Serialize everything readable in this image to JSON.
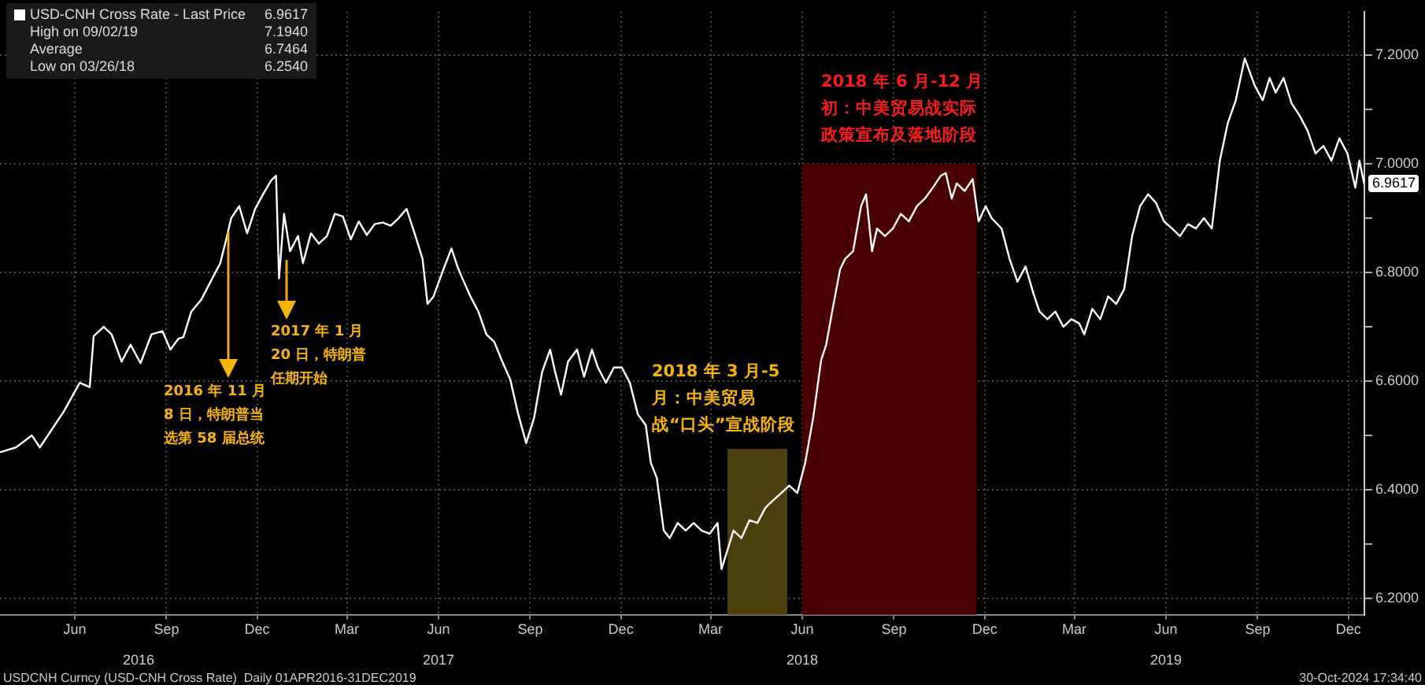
{
  "chart_data": {
    "type": "line",
    "x": [
      "2016-04-01",
      "2016-04-17",
      "2016-05-03",
      "2016-05-11",
      "2016-06-04",
      "2016-06-20",
      "2016-06-30",
      "2016-07-04",
      "2016-07-14",
      "2016-07-22",
      "2016-08-01",
      "2016-08-10",
      "2016-08-20",
      "2016-08-31",
      "2016-09-11",
      "2016-09-19",
      "2016-09-27",
      "2016-10-02",
      "2016-10-10",
      "2016-10-20",
      "2016-10-31",
      "2016-11-08",
      "2016-11-14",
      "2016-11-19",
      "2016-11-27",
      "2016-12-05",
      "2016-12-13",
      "2016-12-21",
      "2016-12-29",
      "2017-01-03",
      "2017-01-06",
      "2017-01-11",
      "2017-01-17",
      "2017-01-25",
      "2017-01-30",
      "2017-02-07",
      "2017-02-15",
      "2017-02-23",
      "2017-03-03",
      "2017-03-11",
      "2017-03-19",
      "2017-03-27",
      "2017-04-04",
      "2017-04-12",
      "2017-04-20",
      "2017-04-28",
      "2017-05-06",
      "2017-05-14",
      "2017-05-22",
      "2017-05-30",
      "2017-06-04",
      "2017-06-10",
      "2017-06-20",
      "2017-06-28",
      "2017-07-04",
      "2017-07-09",
      "2017-07-17",
      "2017-07-25",
      "2017-08-02",
      "2017-08-10",
      "2017-08-18",
      "2017-08-26",
      "2017-09-03",
      "2017-09-11",
      "2017-09-19",
      "2017-09-27",
      "2017-10-05",
      "2017-10-10",
      "2017-10-16",
      "2017-10-23",
      "2017-11-01",
      "2017-11-08",
      "2017-11-16",
      "2017-11-22",
      "2017-11-30",
      "2017-12-08",
      "2017-12-16",
      "2017-12-24",
      "2018-01-01",
      "2018-01-09",
      "2018-01-14",
      "2018-01-20",
      "2018-01-27",
      "2018-02-02",
      "2018-02-10",
      "2018-02-18",
      "2018-02-26",
      "2018-03-06",
      "2018-03-14",
      "2018-03-22",
      "2018-03-26",
      "2018-04-07",
      "2018-04-15",
      "2018-04-23",
      "2018-05-01",
      "2018-05-09",
      "2018-05-17",
      "2018-05-25",
      "2018-06-02",
      "2018-06-10",
      "2018-06-18",
      "2018-06-26",
      "2018-07-04",
      "2018-07-09",
      "2018-07-15",
      "2018-07-23",
      "2018-07-28",
      "2018-08-05",
      "2018-08-13",
      "2018-08-18",
      "2018-08-24",
      "2018-08-29",
      "2018-09-06",
      "2018-09-14",
      "2018-09-22",
      "2018-09-30",
      "2018-10-08",
      "2018-10-16",
      "2018-10-24",
      "2018-11-01",
      "2018-11-06",
      "2018-11-12",
      "2018-11-17",
      "2018-11-25",
      "2018-12-03",
      "2018-12-09",
      "2018-12-16",
      "2018-12-22",
      "2019-01-01",
      "2019-01-09",
      "2019-01-17",
      "2019-01-25",
      "2019-02-02",
      "2019-02-08",
      "2019-02-16",
      "2019-02-24",
      "2019-03-04",
      "2019-03-12",
      "2019-03-20",
      "2019-03-25",
      "2019-04-02",
      "2019-04-10",
      "2019-04-18",
      "2019-04-26",
      "2019-05-04",
      "2019-05-12",
      "2019-05-20",
      "2019-05-28",
      "2019-06-05",
      "2019-06-13",
      "2019-06-21",
      "2019-06-29",
      "2019-07-07",
      "2019-07-15",
      "2019-07-23",
      "2019-07-31",
      "2019-08-08",
      "2019-08-16",
      "2019-08-24",
      "2019-09-02",
      "2019-09-12",
      "2019-09-20",
      "2019-09-27",
      "2019-10-03",
      "2019-10-11",
      "2019-10-19",
      "2019-10-27",
      "2019-11-04",
      "2019-11-12",
      "2019-11-20",
      "2019-11-28",
      "2019-12-06",
      "2019-12-14",
      "2019-12-22",
      "2019-12-26",
      "2019-12-31"
    ],
    "series": [
      {
        "name": "USD-CNH Cross Rate - Last Price",
        "color": "#ffffff",
        "values": [
          6.469,
          6.478,
          6.5,
          6.478,
          6.544,
          6.597,
          6.589,
          6.683,
          6.7,
          6.686,
          6.636,
          6.667,
          6.633,
          6.686,
          6.692,
          6.658,
          6.678,
          6.681,
          6.728,
          6.75,
          6.789,
          6.817,
          6.861,
          6.9,
          6.922,
          6.872,
          6.917,
          6.944,
          6.969,
          6.978,
          6.789,
          6.908,
          6.839,
          6.867,
          6.817,
          6.872,
          6.853,
          6.867,
          6.908,
          6.903,
          6.861,
          6.894,
          6.869,
          6.889,
          6.892,
          6.886,
          6.9,
          6.917,
          6.872,
          6.825,
          6.742,
          6.756,
          6.806,
          6.844,
          6.811,
          6.789,
          6.756,
          6.728,
          6.686,
          6.672,
          6.636,
          6.603,
          6.539,
          6.486,
          6.533,
          6.617,
          6.658,
          6.617,
          6.575,
          6.636,
          6.658,
          6.608,
          6.658,
          6.625,
          6.597,
          6.625,
          6.625,
          6.597,
          6.539,
          6.519,
          6.45,
          6.422,
          6.325,
          6.311,
          6.339,
          6.325,
          6.339,
          6.325,
          6.319,
          6.339,
          6.254,
          6.325,
          6.311,
          6.344,
          6.339,
          6.367,
          6.381,
          6.394,
          6.408,
          6.394,
          6.45,
          6.533,
          6.639,
          6.667,
          6.728,
          6.806,
          6.825,
          6.839,
          6.922,
          6.944,
          6.839,
          6.881,
          6.867,
          6.881,
          6.908,
          6.894,
          6.922,
          6.936,
          6.956,
          6.978,
          6.983,
          6.936,
          6.964,
          6.95,
          6.972,
          6.894,
          6.922,
          6.9,
          6.881,
          6.825,
          6.783,
          6.811,
          6.761,
          6.728,
          6.714,
          6.728,
          6.7,
          6.714,
          6.706,
          6.686,
          6.733,
          6.714,
          6.756,
          6.742,
          6.769,
          6.867,
          6.922,
          6.944,
          6.928,
          6.894,
          6.881,
          6.867,
          6.889,
          6.881,
          6.9,
          6.881,
          7.006,
          7.075,
          7.117,
          7.194,
          7.144,
          7.117,
          7.158,
          7.131,
          7.158,
          7.111,
          7.089,
          7.061,
          7.019,
          7.033,
          7.006,
          7.047,
          7.019,
          6.956,
          7.006,
          6.962
        ]
      }
    ],
    "xlim": [
      "2016-04-01",
      "2019-12-31"
    ],
    "xticks": [
      {
        "value": "2016-06-15",
        "label": "Jun"
      },
      {
        "value": "2016-09-15",
        "label": "Sep"
      },
      {
        "value": "2016-12-15",
        "label": "Dec"
      },
      {
        "value": "2017-03-15",
        "label": "Mar"
      },
      {
        "value": "2017-06-15",
        "label": "Jun"
      },
      {
        "value": "2017-09-15",
        "label": "Sep"
      },
      {
        "value": "2017-12-15",
        "label": "Dec"
      },
      {
        "value": "2018-03-15",
        "label": "Mar"
      },
      {
        "value": "2018-06-15",
        "label": "Jun"
      },
      {
        "value": "2018-09-15",
        "label": "Sep"
      },
      {
        "value": "2018-12-15",
        "label": "Dec"
      },
      {
        "value": "2019-03-15",
        "label": "Mar"
      },
      {
        "value": "2019-06-15",
        "label": "Jun"
      },
      {
        "value": "2019-09-15",
        "label": "Sep"
      },
      {
        "value": "2019-12-15",
        "label": "Dec"
      }
    ],
    "x2lim": [
      "2016-04-01",
      "2019-12-31"
    ],
    "x2ticks": [
      {
        "value": "2016-08-18",
        "label": "2016"
      },
      {
        "value": "2017-06-15",
        "label": "2017"
      },
      {
        "value": "2018-06-15",
        "label": "2018"
      },
      {
        "value": "2019-06-15",
        "label": "2019"
      }
    ],
    "ylim": [
      6.17,
      7.28
    ],
    "yticks": [
      {
        "value": 6.2,
        "label": "6.2000"
      },
      {
        "value": 6.3,
        "label": null
      },
      {
        "value": 6.4,
        "label": "6.4000"
      },
      {
        "value": 6.5,
        "label": null
      },
      {
        "value": 6.6,
        "label": "6.6000"
      },
      {
        "value": 6.7,
        "label": null
      },
      {
        "value": 6.8,
        "label": "6.8000"
      },
      {
        "value": 6.9,
        "label": null
      },
      {
        "value": 7.0,
        "label": "7.0000"
      },
      {
        "value": 7.1,
        "label": null
      },
      {
        "value": 7.2,
        "label": "7.2000"
      }
    ],
    "grid": true,
    "legend": "top left",
    "bands": [
      {
        "axis": "x",
        "from": "2018-04-01",
        "to": "2018-05-31",
        "label": "2018 年 3 月-5 月：中美贸易战“口头”宣战阶段",
        "color": "#4d3f0e"
      },
      {
        "axis": "x",
        "from": "2018-06-15",
        "to": "2018-12-07",
        "label": "2018 年 6 月-12 月初：中美贸易战实际政策宣布及落地阶段",
        "color": "#4a0000"
      }
    ],
    "annotations": [
      "6.9617",
      "High on 09/02/19",
      "7.1940",
      "Average",
      "6.7464",
      "Low on 03/26/18",
      "6.2540",
      "2016 年 11 月 8 日，特朗普当选第 58 届总统",
      "2017 年 1 月 20 日，特朗普任期开始",
      {
        "text": "6.9617",
        "x": "2019-12-31",
        "y": 6.9617
      },
      "USDCNH Curncy (USD-CNH Cross Rate)  Daily 01APR2016-31DEC2019",
      "30-Oct-2024 17:34:40"
    ]
  }
}
